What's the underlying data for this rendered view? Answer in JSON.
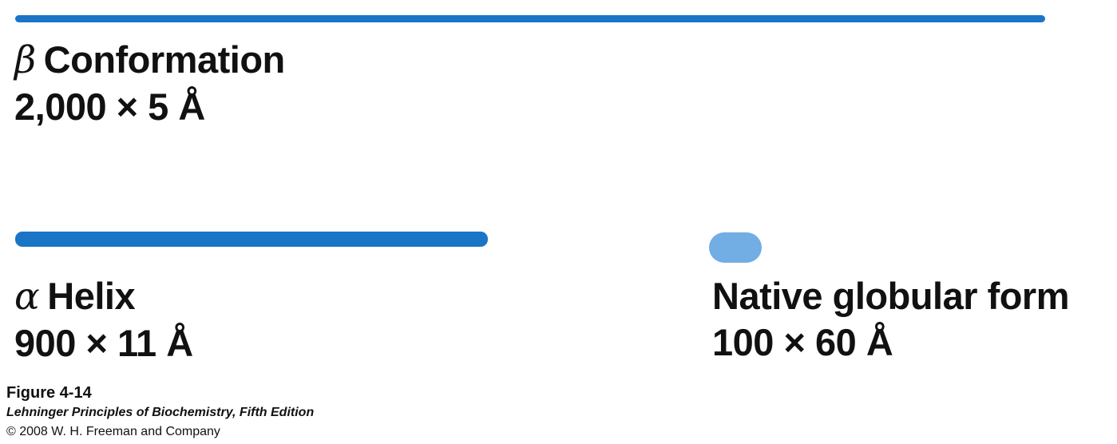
{
  "colors": {
    "bar": "#1a75c7",
    "globule": "#72ade4",
    "text": "#111111"
  },
  "forms": [
    {
      "symbol": "β",
      "name": "Conformation",
      "dimensions": "2,000 × 5 Å",
      "shape": "long thin bar"
    },
    {
      "symbol": "α",
      "name": "Helix",
      "dimensions": "900 × 11 Å",
      "shape": "medium bar"
    },
    {
      "symbol": "",
      "name": "Native globular form",
      "dimensions": "100 × 60 Å",
      "shape": "rounded globule"
    }
  ],
  "caption": {
    "figure": "Figure 4-14",
    "book": "Lehninger Principles of Biochemistry, Fifth Edition",
    "copyright": "© 2008 W. H. Freeman and Company"
  }
}
